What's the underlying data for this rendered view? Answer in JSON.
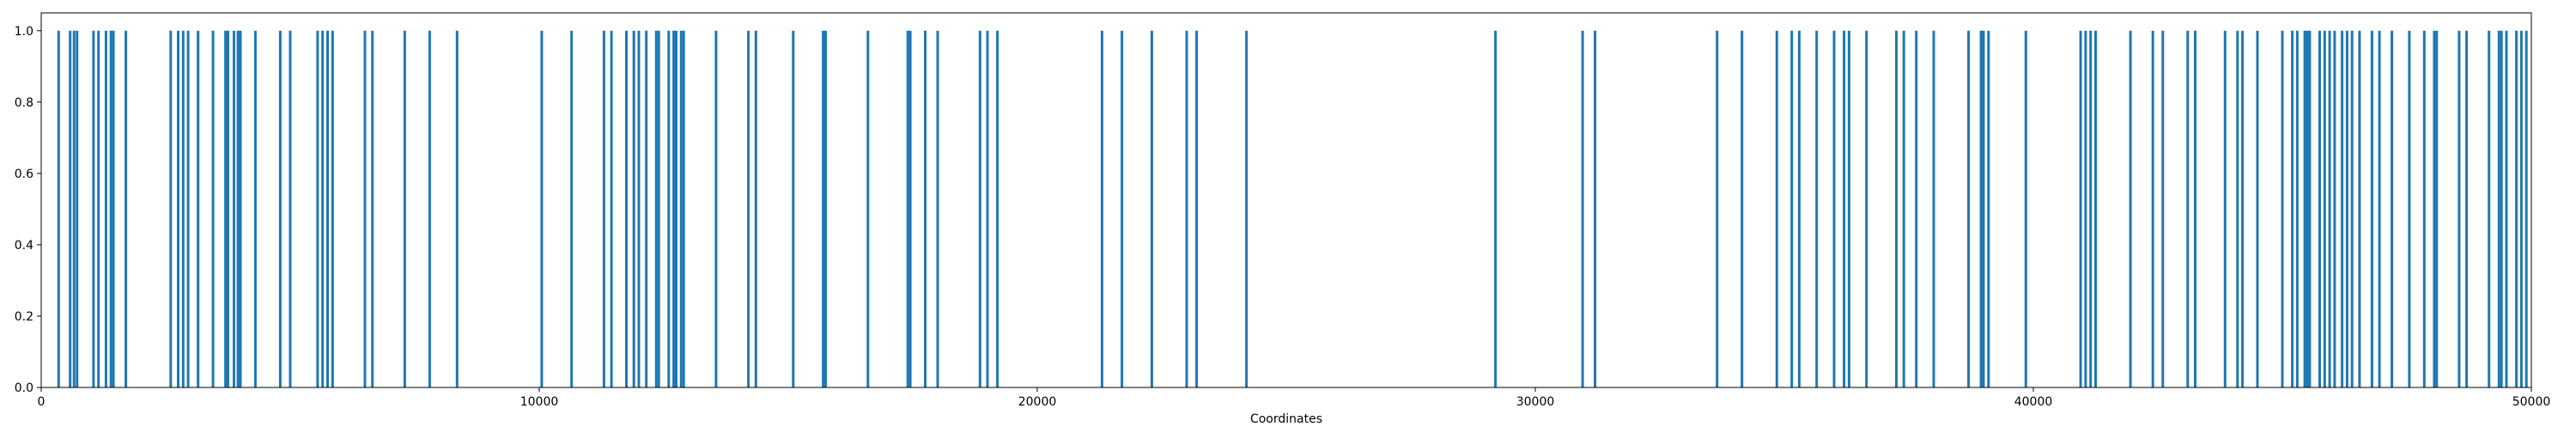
{
  "chart_data": {
    "type": "bar",
    "title": "",
    "xlabel": "Coordinates",
    "ylabel": "",
    "xlim": [
      0,
      50000
    ],
    "ylim": [
      0.0,
      1.05
    ],
    "x_ticks": [
      0,
      10000,
      20000,
      30000,
      40000,
      50000
    ],
    "y_ticks": [
      0.0,
      0.2,
      0.4,
      0.6,
      0.8,
      1.0
    ],
    "x_tick_labels": [
      "0",
      "10000",
      "20000",
      "30000",
      "40000",
      "50000"
    ],
    "y_tick_labels": [
      "0.0",
      "0.2",
      "0.4",
      "0.6",
      "0.8",
      "1.0"
    ],
    "grid": false,
    "legend": "none",
    "bar_color": "#1f77b4",
    "series": [
      {
        "x": [
          350,
          580,
          660,
          720,
          1050,
          1150,
          1300,
          1400,
          1450,
          1700,
          2600,
          2750,
          2850,
          2950,
          3150,
          3450,
          3700,
          3750,
          3870,
          3950,
          4000,
          4300,
          4800,
          5000,
          5550,
          5650,
          5750,
          5850,
          6500,
          6650,
          7300,
          7800,
          8350,
          10050,
          10650,
          11300,
          11450,
          11750,
          11900,
          12000,
          12150,
          12350,
          12400,
          12600,
          12700,
          12750,
          12850,
          12900,
          13550,
          14200,
          14350,
          15100,
          15700,
          15750,
          16600,
          17400,
          17450,
          17750,
          18000,
          18850,
          19000,
          19200,
          21300,
          21700,
          22300,
          23000,
          23200,
          24200,
          29200,
          30950,
          31200,
          33650,
          34150,
          34850,
          35150,
          35300,
          35650,
          36000,
          36200,
          36300,
          36650,
          37250,
          37400,
          37650,
          38000,
          38700,
          38950,
          39000,
          39100,
          39850,
          40950,
          41050,
          41150,
          41250,
          41950,
          42400,
          42600,
          43100,
          43250,
          43850,
          44100,
          44200,
          44500,
          45000,
          45200,
          45300,
          45450,
          45500,
          45550,
          45750,
          45850,
          45950,
          46050,
          46200,
          46300,
          46400,
          46550,
          46800,
          46950,
          47200,
          47550,
          47850,
          48050,
          48100,
          48550,
          48700,
          49150,
          49350,
          49400,
          49500,
          49700,
          49800,
          49900
        ],
        "values": [
          1,
          1,
          1,
          1,
          1,
          1,
          1,
          1,
          1,
          1,
          1,
          1,
          1,
          1,
          1,
          1,
          1,
          1,
          1,
          1,
          1,
          1,
          1,
          1,
          1,
          1,
          1,
          1,
          1,
          1,
          1,
          1,
          1,
          1,
          1,
          1,
          1,
          1,
          1,
          1,
          1,
          1,
          1,
          1,
          1,
          1,
          1,
          1,
          1,
          1,
          1,
          1,
          1,
          1,
          1,
          1,
          1,
          1,
          1,
          1,
          1,
          1,
          1,
          1,
          1,
          1,
          1,
          1,
          1,
          1,
          1,
          1,
          1,
          1,
          1,
          1,
          1,
          1,
          1,
          1,
          1,
          1,
          1,
          1,
          1,
          1,
          1,
          1,
          1,
          1,
          1,
          1,
          1,
          1,
          1,
          1,
          1,
          1,
          1,
          1,
          1,
          1,
          1,
          1,
          1,
          1,
          1,
          1,
          1,
          1,
          1,
          1,
          1,
          1,
          1,
          1,
          1,
          1,
          1,
          1,
          1,
          1,
          1,
          1,
          1,
          1,
          1,
          1,
          1,
          1,
          1,
          1,
          1
        ]
      }
    ]
  }
}
